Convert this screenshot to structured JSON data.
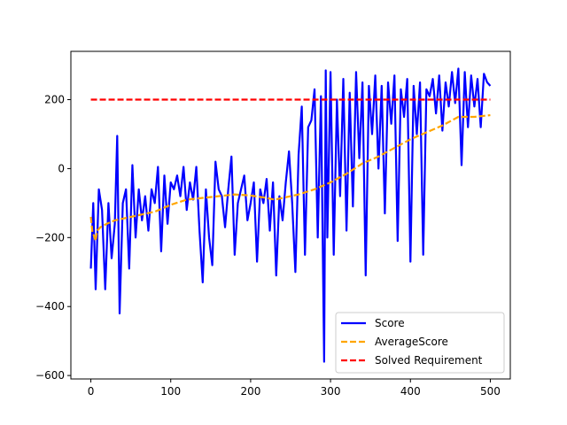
{
  "chart_data": {
    "type": "line",
    "title": "",
    "xlabel": "",
    "ylabel": "",
    "xlim": [
      -25,
      525
    ],
    "ylim": [
      -610,
      340
    ],
    "xticks": [
      0,
      100,
      200,
      300,
      400,
      500
    ],
    "yticks": [
      -600,
      -400,
      -200,
      0,
      200
    ],
    "grid": false,
    "legend_position": "lower-right",
    "series": [
      {
        "name": "Score",
        "color": "#0000ff",
        "style": "solid",
        "x": [
          0,
          3,
          6,
          10,
          14,
          18,
          22,
          26,
          30,
          33,
          36,
          40,
          44,
          48,
          52,
          56,
          60,
          64,
          68,
          72,
          76,
          80,
          84,
          88,
          92,
          96,
          100,
          104,
          108,
          112,
          116,
          120,
          124,
          128,
          132,
          136,
          140,
          144,
          148,
          152,
          156,
          160,
          164,
          168,
          172,
          176,
          180,
          184,
          188,
          192,
          196,
          200,
          204,
          208,
          212,
          216,
          220,
          224,
          228,
          232,
          236,
          240,
          244,
          248,
          252,
          256,
          260,
          264,
          268,
          272,
          276,
          280,
          284,
          288,
          292,
          294,
          296,
          300,
          304,
          308,
          312,
          316,
          320,
          324,
          328,
          332,
          336,
          340,
          344,
          348,
          352,
          356,
          360,
          364,
          368,
          372,
          376,
          380,
          384,
          388,
          392,
          396,
          400,
          404,
          408,
          412,
          416,
          420,
          424,
          428,
          432,
          436,
          440,
          444,
          448,
          452,
          456,
          460,
          464,
          468,
          472,
          476,
          480,
          484,
          488,
          492,
          496,
          500
        ],
        "values": [
          -290,
          -100,
          -350,
          -60,
          -120,
          -350,
          -100,
          -260,
          -160,
          95,
          -420,
          -100,
          -60,
          -290,
          10,
          -200,
          -60,
          -150,
          -80,
          -180,
          -60,
          -100,
          5,
          -240,
          -20,
          -160,
          -40,
          -60,
          -20,
          -80,
          5,
          -120,
          -40,
          -90,
          5,
          -180,
          -330,
          -60,
          -200,
          -280,
          20,
          -60,
          -80,
          -170,
          -60,
          35,
          -250,
          -100,
          -60,
          -20,
          -150,
          -100,
          -40,
          -270,
          -60,
          -100,
          -30,
          -180,
          -40,
          -310,
          -80,
          -150,
          -40,
          50,
          -100,
          -300,
          40,
          180,
          -250,
          120,
          140,
          230,
          -200,
          210,
          -560,
          285,
          -200,
          280,
          -250,
          200,
          -80,
          260,
          -180,
          220,
          -110,
          280,
          30,
          250,
          -310,
          240,
          100,
          270,
          0,
          240,
          -130,
          250,
          130,
          270,
          -210,
          230,
          150,
          260,
          -270,
          240,
          100,
          250,
          -250,
          230,
          210,
          260,
          160,
          270,
          110,
          250,
          180,
          280,
          190,
          290,
          10,
          280,
          120,
          270,
          180,
          260,
          120,
          275,
          250,
          240
        ]
      },
      {
        "name": "AverageScore",
        "color": "#ffa500",
        "style": "dashed",
        "x": [
          0,
          2,
          4,
          6,
          8,
          12,
          20,
          30,
          40,
          50,
          60,
          80,
          100,
          120,
          140,
          160,
          180,
          200,
          220,
          230,
          240,
          260,
          280,
          300,
          320,
          340,
          360,
          380,
          400,
          420,
          440,
          460,
          480,
          500
        ],
        "values": [
          -140,
          -185,
          -195,
          -210,
          -180,
          -170,
          -160,
          -150,
          -145,
          -140,
          -135,
          -125,
          -105,
          -90,
          -85,
          -80,
          -75,
          -78,
          -85,
          -90,
          -85,
          -75,
          -60,
          -40,
          -15,
          15,
          35,
          60,
          85,
          105,
          125,
          150,
          150,
          155
        ]
      },
      {
        "name": "Solved Requirement",
        "color": "#ff0000",
        "style": "dashed",
        "x": [
          0,
          500
        ],
        "values": [
          200,
          200
        ]
      }
    ]
  }
}
